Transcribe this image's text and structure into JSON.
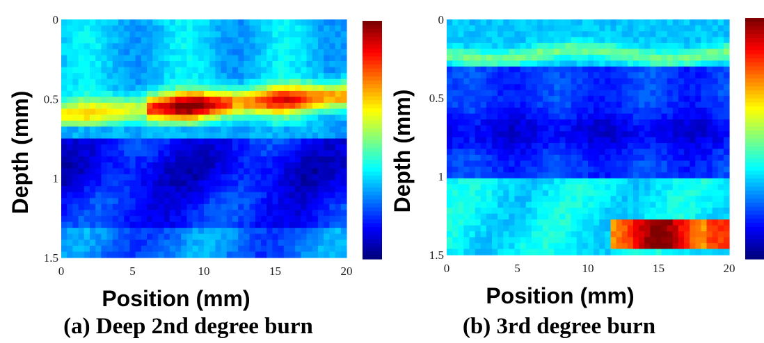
{
  "chart_data": [
    {
      "type": "heatmap",
      "title": "",
      "caption": "(a) Deep 2nd degree burn",
      "xlabel": "Position (mm)",
      "ylabel": "Depth (mm)",
      "xlim": [
        0,
        20
      ],
      "ylim": [
        0,
        1.5
      ],
      "y_inverted": true,
      "x_ticks": [
        "0",
        "5",
        "10",
        "15",
        "20"
      ],
      "y_ticks": [
        "0",
        "0.5",
        "1",
        "1.5"
      ],
      "colormap": "jet",
      "colorbar": true,
      "features": [
        {
          "x_range": [
            0,
            20
          ],
          "depth_range": [
            0,
            0.45
          ],
          "intensity": 0.35
        },
        {
          "x_range": [
            0,
            20
          ],
          "depth_range": [
            0.45,
            0.75
          ],
          "intensity": 0.7,
          "peak": [
            9,
            0.63
          ]
        },
        {
          "x_range": [
            0,
            20
          ],
          "depth_range": [
            0.75,
            1.5
          ],
          "intensity": 0.15
        }
      ]
    },
    {
      "type": "heatmap",
      "title": "",
      "caption": "(b) 3rd degree burn",
      "xlabel": "Position (mm)",
      "ylabel": "Depth (mm)",
      "xlim": [
        0,
        20
      ],
      "ylim": [
        0,
        1.5
      ],
      "y_inverted": true,
      "x_ticks": [
        "0",
        "5",
        "10",
        "15",
        "20"
      ],
      "y_ticks": [
        "0",
        "0.5",
        "1",
        "1.5"
      ],
      "colormap": "jet",
      "colorbar": true,
      "features": [
        {
          "x_range": [
            0,
            20
          ],
          "depth_range": [
            0,
            0.2
          ],
          "intensity": 0.3
        },
        {
          "x_range": [
            0,
            20
          ],
          "depth_range": [
            0.2,
            0.3
          ],
          "intensity": 0.5
        },
        {
          "x_range": [
            0,
            20
          ],
          "depth_range": [
            0.3,
            1.0
          ],
          "intensity": 0.15
        },
        {
          "x_range": [
            0,
            20
          ],
          "depth_range": [
            1.0,
            1.5
          ],
          "intensity": 0.35
        },
        {
          "x_range": [
            12,
            20
          ],
          "depth_range": [
            1.3,
            1.45
          ],
          "intensity": 0.95,
          "peak": [
            15,
            1.38
          ]
        }
      ]
    }
  ],
  "colors": {
    "jet_low": "#00007f",
    "jet_mid": "#7fff7f",
    "jet_high": "#7f0000"
  }
}
